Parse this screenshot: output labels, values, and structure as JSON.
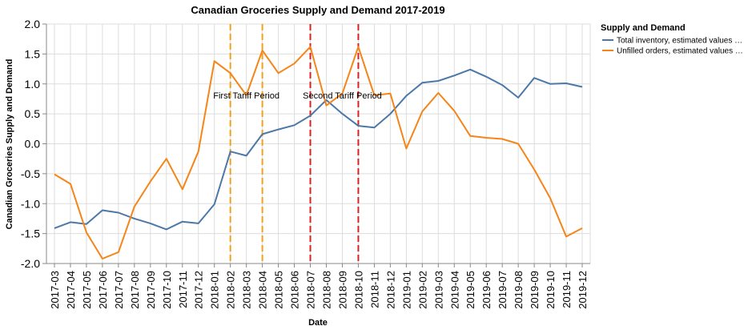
{
  "chart_data": {
    "type": "line",
    "title": "Canadian Groceries Supply and Demand 2017-2019",
    "xlabel": "Date",
    "ylabel": "Canadian Groceries Supply and Demand",
    "ylim": [
      -2.0,
      2.0
    ],
    "yticks": [
      "-2.0",
      "-1.5",
      "-1.0",
      "-0.5",
      "0.0",
      "0.5",
      "1.0",
      "1.5",
      "2.0"
    ],
    "grid": true,
    "legend": {
      "title": "Supply and Demand",
      "position": "right"
    },
    "categories": [
      "2017-03",
      "2017-04",
      "2017-05",
      "2017-06",
      "2017-07",
      "2017-08",
      "2017-09",
      "2017-10",
      "2017-11",
      "2017-12",
      "2018-01",
      "2018-02",
      "2018-03",
      "2018-04",
      "2018-05",
      "2018-06",
      "2018-07",
      "2018-08",
      "2018-09",
      "2018-10",
      "2018-11",
      "2018-12",
      "2019-01",
      "2019-02",
      "2019-03",
      "2019-04",
      "2019-05",
      "2019-06",
      "2019-07",
      "2019-08",
      "2019-09",
      "2019-10",
      "2019-11",
      "2019-12"
    ],
    "series": [
      {
        "name": "Total inventory, estimated values …",
        "color": "#4c78a8",
        "values": [
          -1.41,
          -1.31,
          -1.34,
          -1.11,
          -1.15,
          -1.25,
          -1.33,
          -1.43,
          -1.3,
          -1.33,
          -1.01,
          -0.13,
          -0.2,
          0.16,
          0.24,
          0.31,
          0.47,
          0.73,
          0.5,
          0.3,
          0.27,
          0.5,
          0.8,
          1.02,
          1.05,
          1.14,
          1.24,
          1.12,
          0.98,
          0.77,
          1.1,
          1.0,
          1.01,
          0.95
        ]
      },
      {
        "name": "Unfilled orders, estimated values …",
        "color": "#f58518",
        "values": [
          -0.51,
          -0.67,
          -1.48,
          -1.92,
          -1.81,
          -1.05,
          -0.63,
          -0.25,
          -0.76,
          -0.13,
          1.38,
          1.18,
          0.81,
          1.56,
          1.18,
          1.34,
          1.62,
          0.64,
          0.84,
          1.62,
          0.81,
          0.84,
          -0.08,
          0.54,
          0.85,
          0.55,
          0.13,
          0.1,
          0.08,
          0.0,
          -0.43,
          -0.91,
          -1.55,
          -1.41
        ]
      }
    ],
    "annotations": [
      {
        "text": "First Tariff Period",
        "at": "2018-03",
        "y": 0.81,
        "lines": [
          "2018-02",
          "2018-04"
        ],
        "color": "#f2a11d"
      },
      {
        "text": "Second Tariff Period",
        "at": "2018-09",
        "y": 0.81,
        "lines": [
          "2018-07",
          "2018-10"
        ],
        "color": "#d62424"
      }
    ]
  }
}
